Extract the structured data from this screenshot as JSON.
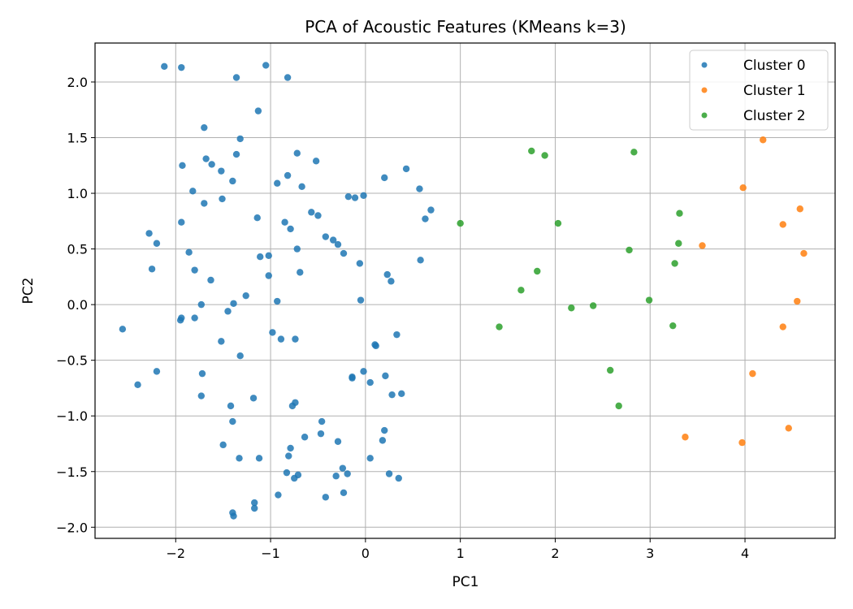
{
  "chart_data": {
    "type": "scatter",
    "title": "PCA of Acoustic Features (KMeans k=3)",
    "xlabel": "PC1",
    "ylabel": "PC2",
    "xlim": [
      -2.85,
      4.95
    ],
    "ylim": [
      -2.1,
      2.35
    ],
    "xticks": [
      -2,
      -1,
      0,
      1,
      2,
      3,
      4
    ],
    "yticks": [
      -2.0,
      -1.5,
      -1.0,
      -0.5,
      0.0,
      0.5,
      1.0,
      1.5,
      2.0
    ],
    "grid": true,
    "legend_position": "top-right",
    "series": [
      {
        "name": "Cluster 0",
        "color": "#1f77b4",
        "points": [
          [
            -2.12,
            2.14
          ],
          [
            -1.94,
            2.13
          ],
          [
            -1.36,
            2.04
          ],
          [
            -1.05,
            2.15
          ],
          [
            -0.82,
            2.04
          ],
          [
            -1.13,
            1.74
          ],
          [
            -1.7,
            1.59
          ],
          [
            -1.32,
            1.49
          ],
          [
            -0.72,
            1.36
          ],
          [
            -1.36,
            1.35
          ],
          [
            -1.68,
            1.31
          ],
          [
            -1.62,
            1.26
          ],
          [
            -1.93,
            1.25
          ],
          [
            -1.52,
            1.2
          ],
          [
            -0.52,
            1.29
          ],
          [
            -1.4,
            1.11
          ],
          [
            -0.82,
            1.16
          ],
          [
            -0.93,
            1.09
          ],
          [
            -0.67,
            1.06
          ],
          [
            -1.82,
            1.02
          ],
          [
            -0.18,
            0.97
          ],
          [
            -0.11,
            0.96
          ],
          [
            -0.02,
            0.98
          ],
          [
            0.2,
            1.14
          ],
          [
            0.43,
            1.22
          ],
          [
            0.57,
            1.04
          ],
          [
            -1.51,
            0.95
          ],
          [
            -1.7,
            0.91
          ],
          [
            -0.57,
            0.83
          ],
          [
            -0.5,
            0.8
          ],
          [
            0.69,
            0.85
          ],
          [
            0.63,
            0.77
          ],
          [
            -1.14,
            0.78
          ],
          [
            -0.85,
            0.74
          ],
          [
            -1.94,
            0.74
          ],
          [
            -0.79,
            0.68
          ],
          [
            -2.28,
            0.64
          ],
          [
            -2.2,
            0.55
          ],
          [
            -0.42,
            0.61
          ],
          [
            -0.34,
            0.58
          ],
          [
            -0.29,
            0.54
          ],
          [
            -0.72,
            0.5
          ],
          [
            -1.86,
            0.47
          ],
          [
            -0.23,
            0.46
          ],
          [
            -1.11,
            0.43
          ],
          [
            -1.02,
            0.44
          ],
          [
            0.58,
            0.4
          ],
          [
            -0.06,
            0.37
          ],
          [
            -2.25,
            0.32
          ],
          [
            -1.8,
            0.31
          ],
          [
            -0.69,
            0.29
          ],
          [
            -1.02,
            0.26
          ],
          [
            0.23,
            0.27
          ],
          [
            0.27,
            0.21
          ],
          [
            -1.63,
            0.22
          ],
          [
            -1.26,
            0.08
          ],
          [
            -0.93,
            0.03
          ],
          [
            -0.05,
            0.04
          ],
          [
            -1.39,
            0.01
          ],
          [
            -1.73,
            0.0
          ],
          [
            -1.45,
            -0.06
          ],
          [
            -1.8,
            -0.12
          ],
          [
            -1.94,
            -0.12
          ],
          [
            -1.95,
            -0.14
          ],
          [
            -2.56,
            -0.22
          ],
          [
            -0.98,
            -0.25
          ],
          [
            -0.89,
            -0.31
          ],
          [
            -0.74,
            -0.31
          ],
          [
            0.33,
            -0.27
          ],
          [
            -1.52,
            -0.33
          ],
          [
            0.1,
            -0.36
          ],
          [
            0.11,
            -0.37
          ],
          [
            -1.32,
            -0.46
          ],
          [
            -0.02,
            -0.6
          ],
          [
            -2.2,
            -0.6
          ],
          [
            -1.72,
            -0.62
          ],
          [
            -0.14,
            -0.65
          ],
          [
            -0.14,
            -0.66
          ],
          [
            0.05,
            -0.7
          ],
          [
            0.21,
            -0.64
          ],
          [
            -2.4,
            -0.72
          ],
          [
            0.28,
            -0.81
          ],
          [
            0.38,
            -0.8
          ],
          [
            -1.73,
            -0.82
          ],
          [
            -1.18,
            -0.84
          ],
          [
            -0.74,
            -0.88
          ],
          [
            -0.77,
            -0.91
          ],
          [
            -1.42,
            -0.91
          ],
          [
            -0.46,
            -1.05
          ],
          [
            -1.4,
            -1.05
          ],
          [
            -0.47,
            -1.16
          ],
          [
            -0.64,
            -1.19
          ],
          [
            0.2,
            -1.13
          ],
          [
            0.18,
            -1.22
          ],
          [
            -0.29,
            -1.23
          ],
          [
            -1.5,
            -1.26
          ],
          [
            -0.79,
            -1.29
          ],
          [
            -0.81,
            -1.36
          ],
          [
            -1.33,
            -1.38
          ],
          [
            -1.12,
            -1.38
          ],
          [
            0.05,
            -1.38
          ],
          [
            -0.24,
            -1.47
          ],
          [
            -0.19,
            -1.52
          ],
          [
            -0.83,
            -1.51
          ],
          [
            -0.71,
            -1.53
          ],
          [
            -0.75,
            -1.56
          ],
          [
            -0.31,
            -1.54
          ],
          [
            0.25,
            -1.52
          ],
          [
            0.35,
            -1.56
          ],
          [
            -0.23,
            -1.69
          ],
          [
            -0.92,
            -1.71
          ],
          [
            -0.42,
            -1.73
          ],
          [
            -1.17,
            -1.78
          ],
          [
            -1.17,
            -1.83
          ],
          [
            -1.4,
            -1.87
          ],
          [
            -1.39,
            -1.9
          ]
        ]
      },
      {
        "name": "Cluster 1",
        "color": "#ff7f0e",
        "points": [
          [
            4.19,
            1.48
          ],
          [
            3.98,
            1.05
          ],
          [
            4.58,
            0.86
          ],
          [
            4.4,
            0.72
          ],
          [
            3.55,
            0.53
          ],
          [
            4.62,
            0.46
          ],
          [
            4.55,
            0.03
          ],
          [
            4.4,
            -0.2
          ],
          [
            4.08,
            -0.62
          ],
          [
            4.46,
            -1.11
          ],
          [
            3.37,
            -1.19
          ],
          [
            3.97,
            -1.24
          ]
        ]
      },
      {
        "name": "Cluster 2",
        "color": "#2ca02c",
        "points": [
          [
            1.75,
            1.38
          ],
          [
            1.89,
            1.34
          ],
          [
            2.83,
            1.37
          ],
          [
            1.0,
            0.73
          ],
          [
            2.03,
            0.73
          ],
          [
            3.31,
            0.82
          ],
          [
            3.3,
            0.55
          ],
          [
            2.78,
            0.49
          ],
          [
            3.26,
            0.37
          ],
          [
            1.81,
            0.3
          ],
          [
            1.64,
            0.13
          ],
          [
            2.99,
            0.04
          ],
          [
            2.17,
            -0.03
          ],
          [
            2.4,
            -0.01
          ],
          [
            1.41,
            -0.2
          ],
          [
            3.24,
            -0.19
          ],
          [
            2.58,
            -0.59
          ],
          [
            2.67,
            -0.91
          ]
        ]
      }
    ]
  }
}
